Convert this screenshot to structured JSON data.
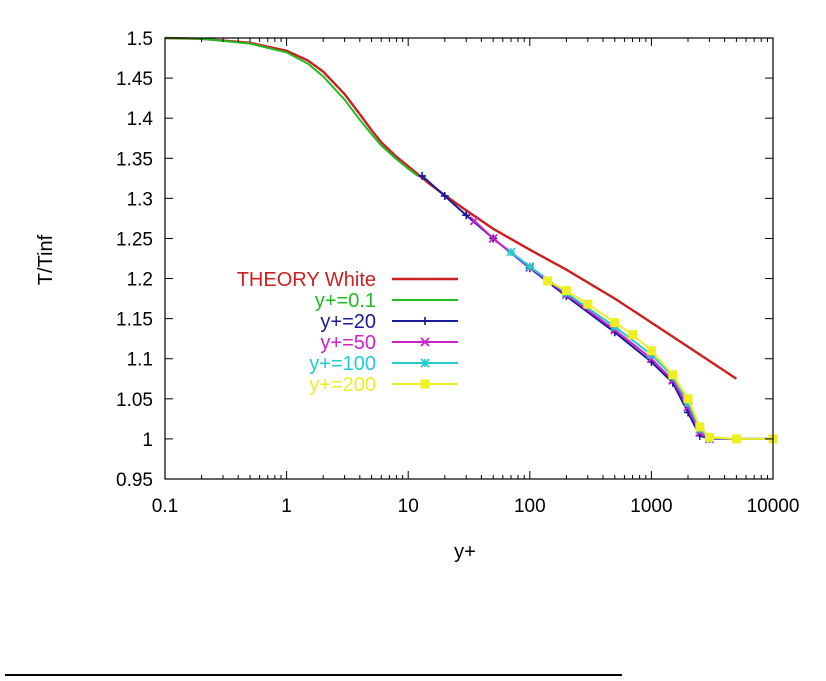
{
  "chart_data": {
    "type": "line",
    "title": "",
    "xlabel": "y+",
    "ylabel": "T/Tinf",
    "xscale": "log",
    "xlim": [
      0.1,
      10000
    ],
    "ylim": [
      0.95,
      1.5
    ],
    "x_ticks": [
      "0.1",
      "1",
      "10",
      "100",
      "1000",
      "10000"
    ],
    "y_ticks": [
      "1.5",
      "1.45",
      "1.4",
      "1.35",
      "1.3",
      "1.25",
      "1.2",
      "1.15",
      "1.1",
      "1.05",
      "1",
      "0.95"
    ],
    "legend_position": "left",
    "grid": false,
    "series": [
      {
        "name": "THEORY White",
        "color": "#cc1f1f",
        "marker": "none",
        "x": [
          0.1,
          0.2,
          0.5,
          1,
          1.5,
          2,
          3,
          4,
          5,
          6,
          8,
          10,
          15,
          20,
          30,
          50,
          100,
          200,
          500,
          1000,
          2000,
          5000
        ],
        "y": [
          1.5,
          1.499,
          1.494,
          1.484,
          1.472,
          1.458,
          1.43,
          1.405,
          1.385,
          1.37,
          1.352,
          1.34,
          1.318,
          1.304,
          1.285,
          1.262,
          1.236,
          1.211,
          1.175,
          1.145,
          1.115,
          1.075
        ]
      },
      {
        "name": "y+=0.1",
        "color": "#22bb22",
        "marker": "none",
        "x": [
          0.1,
          0.2,
          0.5,
          1,
          1.5,
          2,
          3,
          4,
          5,
          6,
          8,
          10,
          12
        ],
        "y": [
          1.5,
          1.499,
          1.493,
          1.482,
          1.468,
          1.452,
          1.423,
          1.398,
          1.38,
          1.366,
          1.349,
          1.337,
          1.328
        ]
      },
      {
        "name": "y+=20",
        "color": "#1a1a9a",
        "marker": "plus",
        "x": [
          13,
          20,
          30,
          50,
          100,
          200,
          500,
          1000,
          1500,
          2000,
          2500,
          3000,
          5000,
          10000
        ],
        "y": [
          1.328,
          1.303,
          1.279,
          1.25,
          1.213,
          1.178,
          1.133,
          1.096,
          1.07,
          1.033,
          1.004,
          1.0,
          1.0,
          1.0
        ]
      },
      {
        "name": "y+=50",
        "color": "#cc22cc",
        "marker": "x",
        "x": [
          35,
          50,
          100,
          200,
          500,
          1000,
          1500,
          2000,
          2500,
          3000,
          5000,
          10000
        ],
        "y": [
          1.272,
          1.25,
          1.214,
          1.18,
          1.136,
          1.1,
          1.073,
          1.04,
          1.008,
          1.0,
          1.0,
          1.0
        ]
      },
      {
        "name": "y+=100",
        "color": "#22cccc",
        "marker": "star",
        "x": [
          70,
          100,
          200,
          500,
          1000,
          1500,
          2000,
          2500,
          3000,
          5000,
          10000
        ],
        "y": [
          1.233,
          1.215,
          1.182,
          1.14,
          1.105,
          1.078,
          1.045,
          1.012,
          1.001,
          1.0,
          1.0
        ]
      },
      {
        "name": "y+=200",
        "color": "#eeee22",
        "marker": "square",
        "x": [
          140,
          200,
          300,
          500,
          700,
          1000,
          1500,
          2000,
          2500,
          3000,
          5000,
          10000
        ],
        "y": [
          1.197,
          1.185,
          1.168,
          1.145,
          1.13,
          1.11,
          1.08,
          1.05,
          1.015,
          1.002,
          1.0,
          1.0
        ]
      }
    ]
  }
}
